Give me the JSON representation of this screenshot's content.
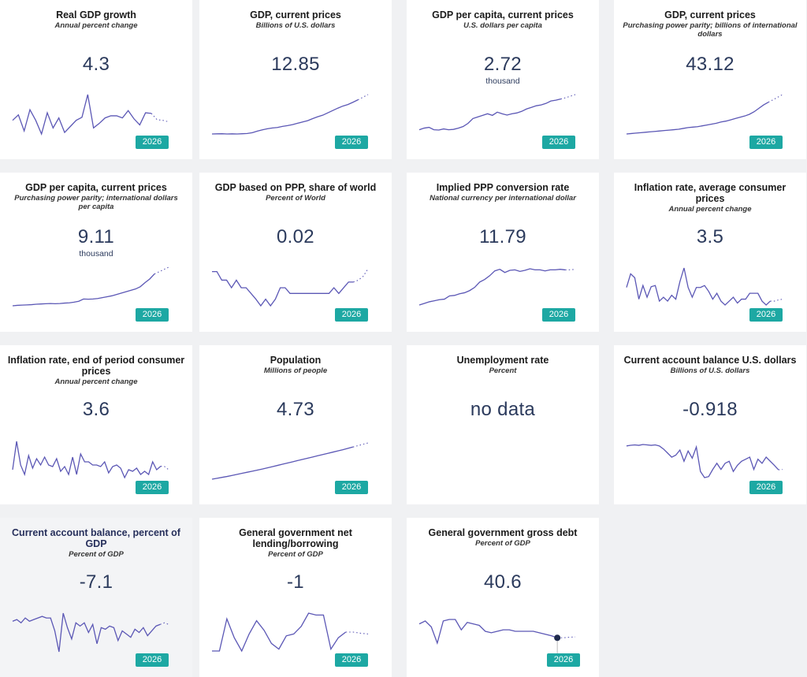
{
  "indicators": [
    {
      "title": "Real GDP growth",
      "subtitle": "Annual percent change",
      "value": "4.3",
      "unit": "",
      "year": "2026",
      "chart_data": {
        "type": "line",
        "values": [
          2.0,
          3.8,
          -1.5,
          5.5,
          2.0,
          -2.5,
          4.5,
          -0.5,
          2.8,
          -2.0,
          0,
          2.0,
          3.0,
          10.5,
          -0.5,
          1.0,
          2.8,
          3.5,
          3.5,
          2.8,
          5.2,
          2.5,
          0.5,
          4.5,
          4.3,
          2.2,
          2.0,
          1.5
        ]
      }
    },
    {
      "title": "GDP, current prices",
      "subtitle": "Billions of U.S. dollars",
      "value": "12.85",
      "unit": "",
      "year": "2026",
      "chart_data": {
        "type": "line",
        "values": [
          0.7,
          0.75,
          0.8,
          0.7,
          0.75,
          0.7,
          0.8,
          0.9,
          1.2,
          1.8,
          2.3,
          2.7,
          3.0,
          3.2,
          3.6,
          3.9,
          4.3,
          4.8,
          5.3,
          5.8,
          6.6,
          7.3,
          7.9,
          8.8,
          9.7,
          10.6,
          11.4,
          12.0,
          12.85,
          13.8,
          14.8,
          15.8
        ]
      }
    },
    {
      "title": "GDP per capita, current prices",
      "subtitle": "U.S. dollars per capita",
      "value": "2.72",
      "unit": "thousand",
      "year": "2026",
      "chart_data": {
        "type": "line",
        "values": [
          0.8,
          0.9,
          0.95,
          0.8,
          0.78,
          0.85,
          0.8,
          0.82,
          0.9,
          1.0,
          1.2,
          1.5,
          1.6,
          1.7,
          1.8,
          1.7,
          1.9,
          1.8,
          1.72,
          1.8,
          1.85,
          1.95,
          2.1,
          2.2,
          2.3,
          2.35,
          2.45,
          2.6,
          2.65,
          2.72,
          2.8,
          2.9,
          3.0
        ]
      }
    },
    {
      "title": "GDP, current prices",
      "subtitle": "Purchasing power parity; billions of international dollars",
      "value": "43.12",
      "unit": "",
      "year": "2026",
      "chart_data": {
        "type": "line",
        "values": [
          6,
          6.5,
          7,
          7.5,
          8,
          8.5,
          9,
          9.5,
          10,
          10.5,
          11,
          11.5,
          12.5,
          13.5,
          14,
          14.5,
          15.5,
          16.5,
          17.5,
          18.5,
          20,
          21,
          22.5,
          24,
          25.5,
          27,
          29,
          32,
          36,
          40,
          43.12,
          46,
          49,
          52
        ]
      }
    },
    {
      "title": "GDP per capita, current prices",
      "subtitle": "Purchasing power parity; international dollars per capita",
      "value": "9.11",
      "unit": "thousand",
      "year": "2026",
      "chart_data": {
        "type": "line",
        "values": [
          2.1,
          2.2,
          2.25,
          2.3,
          2.35,
          2.45,
          2.5,
          2.55,
          2.6,
          2.55,
          2.6,
          2.7,
          2.75,
          2.9,
          3.1,
          3.6,
          3.55,
          3.6,
          3.7,
          3.9,
          4.1,
          4.3,
          4.6,
          4.9,
          5.2,
          5.5,
          5.8,
          6.3,
          7.2,
          8.0,
          9.11,
          9.6,
          10.1,
          10.6
        ]
      }
    },
    {
      "title": "GDP based on PPP, share of world",
      "subtitle": "Percent of World",
      "value": "0.02",
      "unit": "",
      "year": "2026",
      "chart_data": {
        "type": "line",
        "values": [
          0.0175,
          0.0175,
          0.0166,
          0.0166,
          0.0158,
          0.0166,
          0.0158,
          0.0158,
          0.0152,
          0.0146,
          0.0139,
          0.0146,
          0.0139,
          0.0146,
          0.0158,
          0.0158,
          0.0152,
          0.0152,
          0.0152,
          0.0152,
          0.0152,
          0.0152,
          0.0152,
          0.0152,
          0.0152,
          0.0158,
          0.0152,
          0.0158,
          0.0164,
          0.0164,
          0.0166,
          0.017,
          0.0178
        ]
      }
    },
    {
      "title": "Implied PPP conversion rate",
      "subtitle": "National currency per international dollar",
      "value": "11.79",
      "unit": "",
      "year": "2026",
      "chart_data": {
        "type": "line",
        "values": [
          5.2,
          5.5,
          5.8,
          6.0,
          6.2,
          6.3,
          6.9,
          7.0,
          7.3,
          7.5,
          7.9,
          8.5,
          9.5,
          10.0,
          10.7,
          11.6,
          11.9,
          11.3,
          11.7,
          11.8,
          11.5,
          11.7,
          12.0,
          11.8,
          11.8,
          11.6,
          11.8,
          11.8,
          11.9,
          11.79,
          11.8,
          11.9
        ]
      }
    },
    {
      "title": "Inflation rate, average consumer prices",
      "subtitle": "Annual percent change",
      "value": "3.5",
      "unit": "",
      "year": "2026",
      "chart_data": {
        "type": "line",
        "values": [
          5.0,
          8.5,
          7.5,
          2.0,
          5.5,
          2.5,
          5.2,
          5.5,
          1.5,
          2.5,
          1.5,
          3.0,
          2.0,
          6.5,
          10.0,
          5.0,
          2.5,
          5.0,
          5.0,
          5.5,
          4.0,
          2.0,
          3.5,
          1.5,
          0.5,
          1.5,
          2.5,
          1.0,
          2.0,
          2.0,
          3.5,
          3.5,
          3.5,
          1.5,
          0.5,
          1.5,
          1.5,
          1.8,
          2.0
        ]
      }
    },
    {
      "title": "Inflation rate, end of period consumer prices",
      "subtitle": "Annual percent change",
      "value": "3.6",
      "unit": "",
      "year": "2026",
      "chart_data": {
        "type": "line",
        "values": [
          2.5,
          11.5,
          4.0,
          1.0,
          7.0,
          3.0,
          6.0,
          4.0,
          6.5,
          4.0,
          3.5,
          6.0,
          2.0,
          3.5,
          1.0,
          6.5,
          1.0,
          7.5,
          5.0,
          5.0,
          4.0,
          4.0,
          3.5,
          5.0,
          1.5,
          3.5,
          4.0,
          3.0,
          0.0,
          2.5,
          2.0,
          3.0,
          1.0,
          2.0,
          1.0,
          5.0,
          2.5,
          3.6,
          3.5,
          2.5
        ]
      }
    },
    {
      "title": "Population",
      "subtitle": "Millions of people",
      "value": "4.73",
      "unit": "",
      "year": "2026",
      "chart_data": {
        "type": "line",
        "values": [
          2.6,
          2.66,
          2.72,
          2.78,
          2.85,
          2.92,
          2.99,
          3.06,
          3.13,
          3.2,
          3.27,
          3.35,
          3.43,
          3.51,
          3.59,
          3.67,
          3.75,
          3.83,
          3.91,
          3.99,
          4.07,
          4.15,
          4.23,
          4.31,
          4.39,
          4.47,
          4.55,
          4.64,
          4.73,
          4.82,
          4.91,
          5.0
        ]
      }
    },
    {
      "title": "Unemployment rate",
      "subtitle": "Percent",
      "value": "no data",
      "unit": "",
      "year": "",
      "chart_data": {
        "type": "line",
        "values": []
      }
    },
    {
      "title": "Current account balance U.S. dollars",
      "subtitle": "Billions of U.S. dollars",
      "value": "-0.918",
      "unit": "",
      "year": "2026",
      "chart_data": {
        "type": "line",
        "values": [
          0.25,
          0.28,
          0.3,
          0.28,
          0.32,
          0.3,
          0.28,
          0.3,
          0.25,
          0.1,
          -0.1,
          -0.3,
          -0.2,
          0.05,
          -0.5,
          0.0,
          -0.35,
          0.2,
          -1.0,
          -1.3,
          -1.25,
          -0.9,
          -0.6,
          -0.9,
          -0.6,
          -0.5,
          -1.0,
          -0.7,
          -0.5,
          -0.4,
          -0.3,
          -0.9,
          -0.4,
          -0.6,
          -0.3,
          -0.5,
          -0.7,
          -0.918,
          -0.9
        ]
      }
    },
    {
      "title": "Current account balance, percent of GDP",
      "subtitle": "Percent of GDP",
      "value": "-7.1",
      "unit": "",
      "year": "2026",
      "chart_data": {
        "type": "line",
        "values": [
          -4.0,
          -3.5,
          -4.5,
          -3.0,
          -4.0,
          -3.5,
          -3.0,
          -2.5,
          -3.0,
          -3.0,
          -7.0,
          -13.5,
          -1.5,
          -6.0,
          -9.5,
          -4.5,
          -5.5,
          -4.5,
          -7.5,
          -5.0,
          -11.0,
          -6.0,
          -6.5,
          -5.5,
          -6.0,
          -10.0,
          -7.0,
          -8.0,
          -9.0,
          -6.5,
          -7.5,
          -6.0,
          -8.5,
          -7.0,
          -5.5,
          -5.0,
          -4.5,
          -5.0
        ]
      }
    },
    {
      "title": "General government net lending/borrowing",
      "subtitle": "Percent of GDP",
      "value": "-1",
      "unit": "",
      "year": "2026",
      "chart_data": {
        "type": "line",
        "values": [
          -6.0,
          -6.0,
          2.5,
          -2.5,
          -6.0,
          -1.5,
          2.0,
          -0.5,
          -4.0,
          -5.5,
          -2.0,
          -1.5,
          0.5,
          4.0,
          3.5,
          3.5,
          -5.5,
          -2.5,
          -1.0,
          -1.0,
          -1.3,
          -1.5
        ]
      }
    },
    {
      "title": "General government gross debt",
      "subtitle": "Percent of GDP",
      "value": "40.6",
      "unit": "",
      "year": "2026",
      "chart_data": {
        "type": "line",
        "values": [
          50,
          52,
          48,
          37,
          52,
          53,
          53,
          46,
          51,
          50,
          49,
          45,
          44,
          45,
          46,
          46,
          45,
          45,
          45,
          45,
          44,
          43,
          42,
          40.6,
          40.6,
          41.0,
          41.2
        ]
      }
    }
  ]
}
